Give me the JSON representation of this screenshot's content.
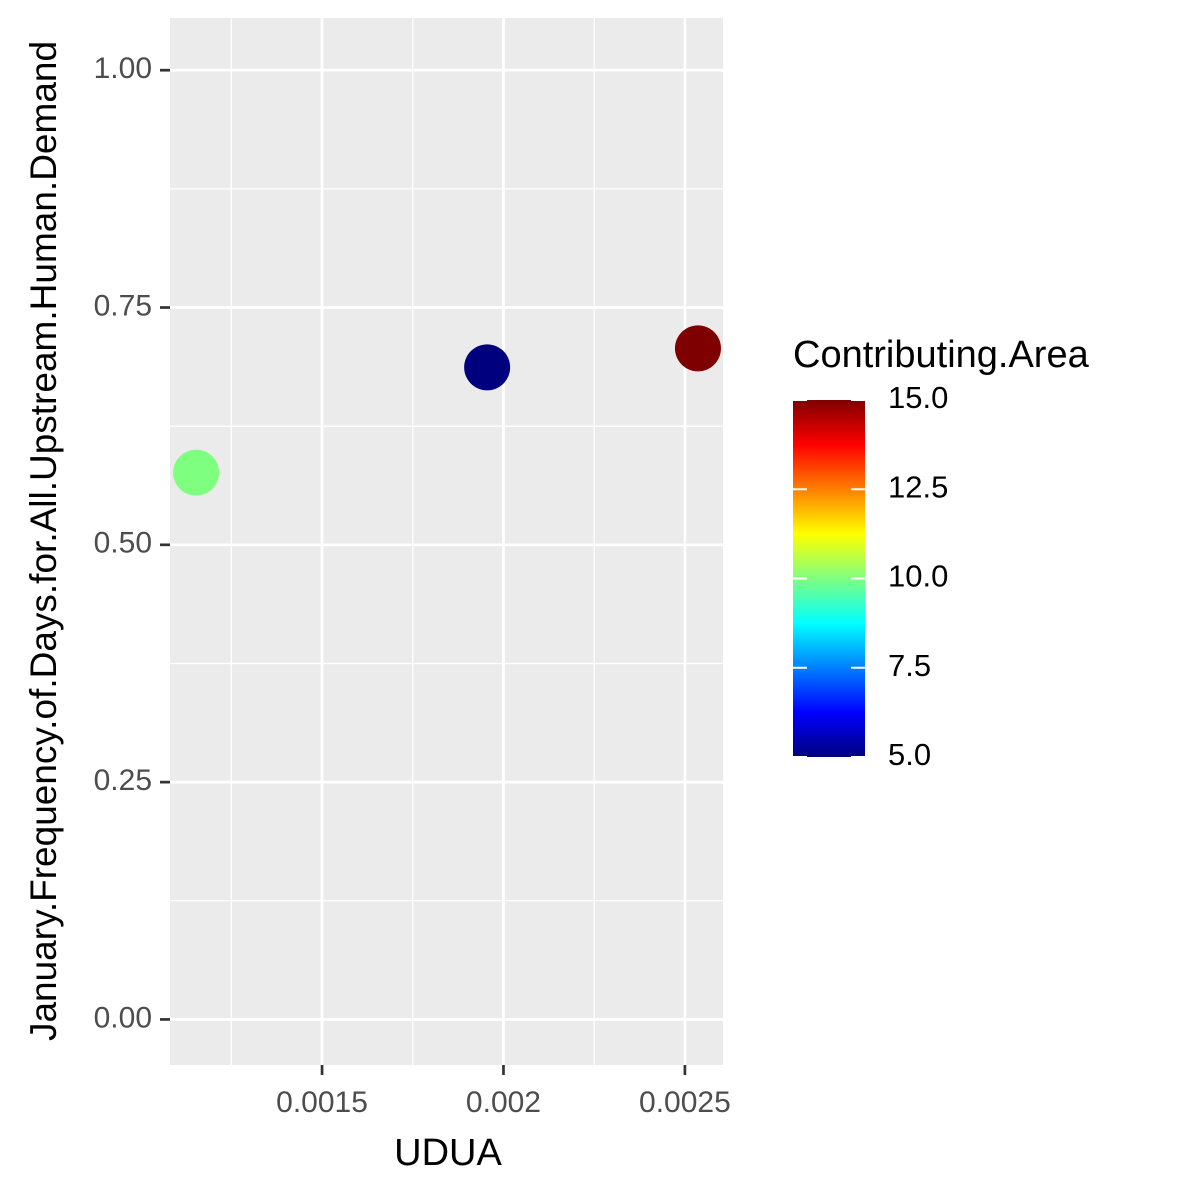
{
  "chart_data": {
    "type": "scatter",
    "x_label": "UDUA",
    "y_label": "January.Frequency.of.Days.for.All.Upstream.Human.Demand",
    "x": [
      0.001153,
      0.001955,
      0.002536
    ],
    "y": [
      0.576,
      0.687,
      0.707
    ],
    "color_values": [
      10.0,
      5.0,
      15.0
    ],
    "xlim": [
      0.001081,
      0.002605
    ],
    "ylim": [
      -0.048,
      1.055
    ],
    "xticks": [
      0.0015,
      0.002,
      0.0025
    ],
    "yticks": [
      {
        "value": 0,
        "label": "0.00"
      },
      {
        "value": 0.25,
        "label": "0.25"
      },
      {
        "value": 0.5,
        "label": "0.50"
      },
      {
        "value": 0.75,
        "label": "0.75"
      },
      {
        "value": 1,
        "label": "1.00"
      }
    ],
    "grid": true,
    "colorbar": {
      "title": "Contributing.Area",
      "lim": [
        5,
        15
      ],
      "ticks": [
        {
          "value": 5,
          "label": "5.0"
        },
        {
          "value": 7.5,
          "label": "7.5"
        },
        {
          "value": 10,
          "label": "10.0"
        },
        {
          "value": 12.5,
          "label": "12.5"
        },
        {
          "value": 15,
          "label": "15.0"
        }
      ],
      "colors": [
        "#00007F",
        "#0000FF",
        "#007FFF",
        "#00FFFF",
        "#7FFF7F",
        "#FFFF00",
        "#FF7F00",
        "#FF0000",
        "#7F0000"
      ]
    }
  }
}
